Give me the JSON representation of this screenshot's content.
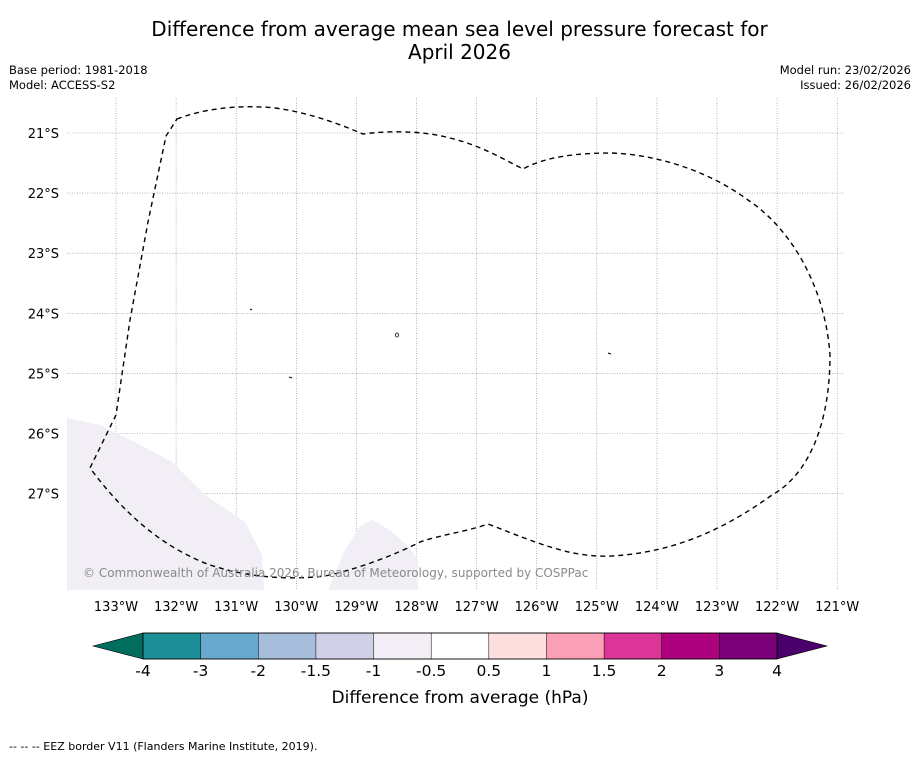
{
  "header": {
    "title_line1": "Difference from average mean sea level pressure forecast for",
    "title_line2": "April 2026",
    "base_period": "Base period: 1981-2018",
    "model": "Model: ACCESS-S2",
    "model_run": "Model run: 23/02/2026",
    "issued": "Issued: 26/02/2026"
  },
  "map": {
    "lat_labels": [
      "21°S",
      "22°S",
      "23°S",
      "24°S",
      "25°S",
      "26°S",
      "27°S"
    ],
    "lon_labels": [
      "133°W",
      "132°W",
      "131°W",
      "130°W",
      "129°W",
      "128°W",
      "127°W",
      "126°W",
      "125°W",
      "124°W",
      "123°W",
      "122°W",
      "121°W"
    ],
    "copyright": "© Commonwealth of Australia 2026, Bureau of Meteorology, supported by COSPPac",
    "eez_line_color": "#000000",
    "anomaly_fill_color": "#f2eef5"
  },
  "colorbar": {
    "title": "Difference from average (hPa)",
    "ticks": [
      "-4",
      "-3",
      "-2",
      "-1.5",
      "-1",
      "-0.5",
      "0.5",
      "1",
      "1.5",
      "2",
      "3",
      "4"
    ],
    "under_color": "#006d5e",
    "over_color": "#49006a",
    "colors": [
      "#1c8f96",
      "#67a9cf",
      "#a6bddb",
      "#d0d1e6",
      "#f3eef6",
      "#ffffff",
      "#fde0dd",
      "#fa9fb5",
      "#dd3497",
      "#ae017e",
      "#7a0177"
    ]
  },
  "footer": {
    "eez_legend": "--  --  -- EEZ border V11 (Flanders Marine Institute, 2019)."
  }
}
